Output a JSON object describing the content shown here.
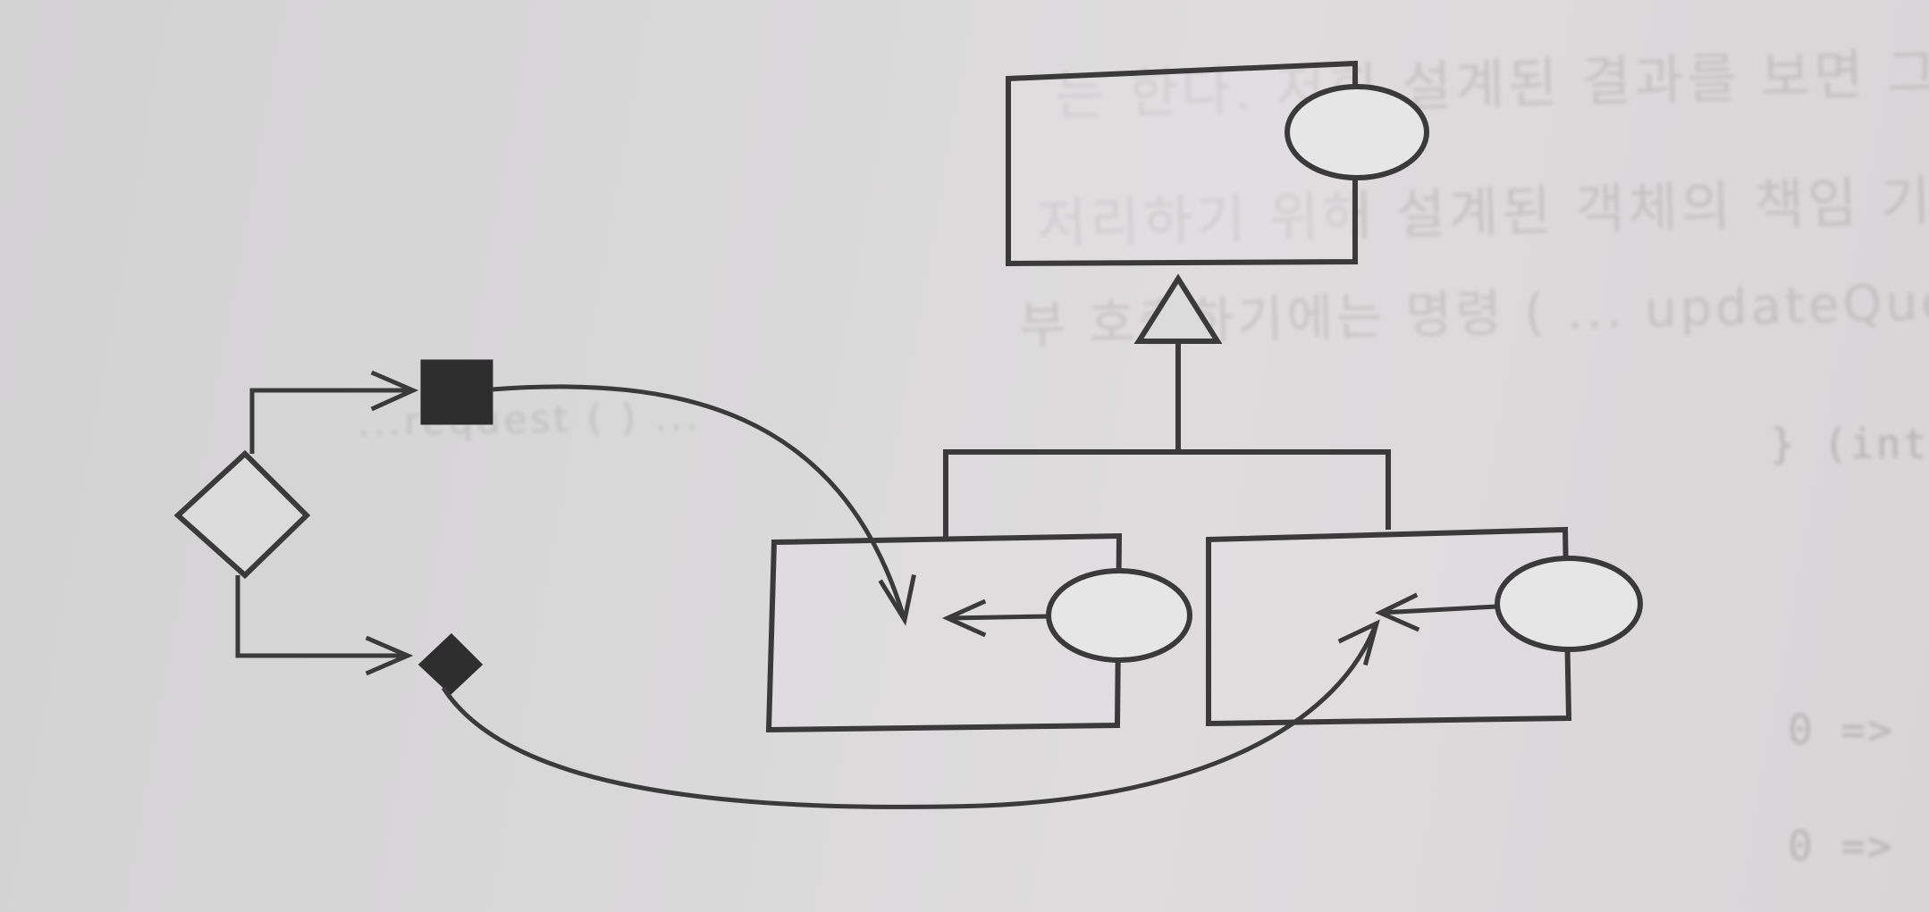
{
  "background_text": {
    "line1": "는 한다. 저희 설계된 결과를 보면 그 구조의 변경을 때 변경",
    "line2": "저리하기 위해 설계된 객체의 책임 기능을 지원하는 경우 하나가 두 가",
    "line3": "부 호출하기에는 명령 ( ... updateQueue, update ( ... 참고)",
    "line4": "...request (  ) ...",
    "code1": "} (int)",
    "code2": "0 =>",
    "code3": "0 =>"
  },
  "colors": {
    "stroke": "#3a3a3a",
    "fill_solid": "#2e2e2e",
    "paper": "#d9d8d9"
  }
}
